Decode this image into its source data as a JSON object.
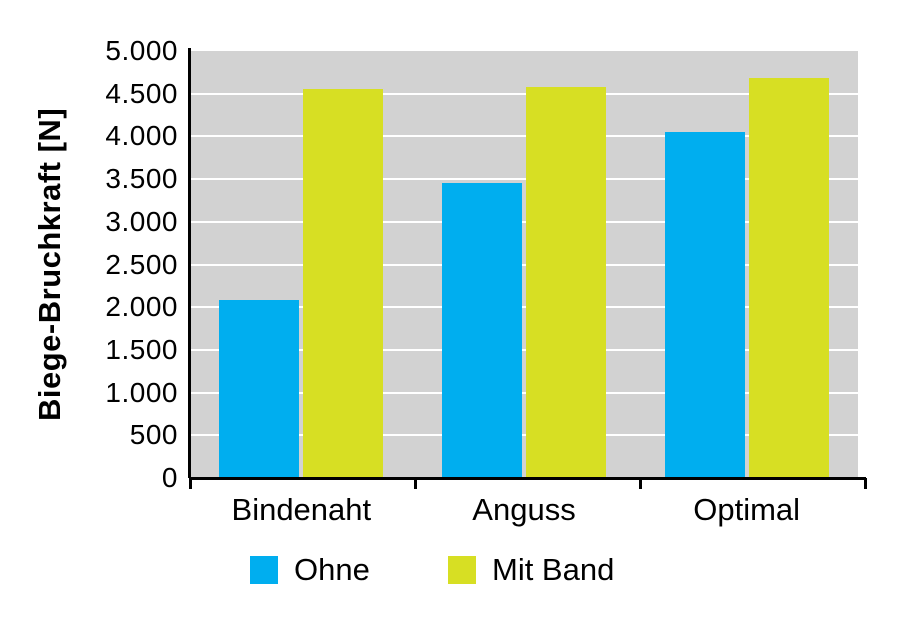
{
  "chart_data": {
    "type": "bar",
    "title": "",
    "xlabel": "",
    "ylabel": "Biege-Bruchkraft [N]",
    "categories": [
      "Bindenaht",
      "Anguss",
      "Optimal"
    ],
    "series": [
      {
        "name": "Ohne",
        "color": "#00AEEF",
        "values": [
          2080,
          3450,
          4050
        ]
      },
      {
        "name": "Mit Band",
        "color": "#D7DF23",
        "values": [
          4550,
          4580,
          4680
        ]
      }
    ],
    "ylim": [
      0,
      5000
    ],
    "ytick_step": 500,
    "ytick_labels": [
      "0",
      "500",
      "1.000",
      "1.500",
      "2.000",
      "2.500",
      "3.000",
      "3.500",
      "4.000",
      "4.500",
      "5.000"
    ],
    "grid": "horizontal",
    "gridline_color": "#FFFFFF",
    "plot_background": "#D2D2D2",
    "axis_color": "#000000",
    "text_color": "#000000",
    "legend_position": "bottom",
    "legend_labels": [
      "Ohne",
      "Mit Band"
    ]
  }
}
